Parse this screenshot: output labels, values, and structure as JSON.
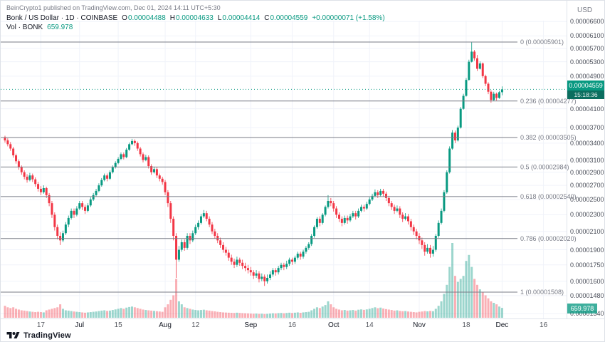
{
  "header": {
    "attribution": "BeinCrypto1 published on TradingView.com, Dec 01, 2024 14:11 UTC+5:30"
  },
  "legend": {
    "symbol": "Bonk / US Dollar · 1D · COINBASE",
    "ohlc": [
      {
        "key": "O",
        "value": "0.00004488"
      },
      {
        "key": "H",
        "value": "0.00004633"
      },
      {
        "key": "L",
        "value": "0.00004414"
      },
      {
        "key": "C",
        "value": "0.00004559"
      }
    ],
    "change": "+0.00000071 (+1.58%)",
    "volume_label": "Vol · BONK",
    "volume_value": "659.978"
  },
  "price_scale": {
    "currency": "USD",
    "last_price_badge": {
      "price": "0.00004559",
      "countdown": "15:18:36"
    },
    "volume_badge": "659.978"
  },
  "footer": {
    "logo_text": "TradingView"
  },
  "colors": {
    "up": "#089981",
    "down": "#f23645",
    "fib": "#787b86",
    "grid": "#f0f3fa",
    "badge_green": "#089981"
  },
  "chart_data": {
    "type": "candlestick",
    "title": "Bonk / US Dollar · 1D · COINBASE",
    "symbol": "BONK/USD",
    "exchange": "COINBASE",
    "interval": "1D",
    "scale": "log",
    "price_unit": "USD",
    "candle_value_unit": 1e-08,
    "start_date": "2024-06-04",
    "end_date": "2024-12-01",
    "last": {
      "open": "0.00004488",
      "high": "0.00004633",
      "low": "0.00004414",
      "close": "0.00004559",
      "change": "+0.00000071 (+1.58%)",
      "volume": "659.978"
    },
    "fib_levels": [
      {
        "label": "0 (0.00005901)",
        "price": 5.901e-05
      },
      {
        "label": "0.236 (0.00004277)",
        "price": 4.277e-05
      },
      {
        "label": "0.382 (0.00003505)",
        "price": 3.505e-05
      },
      {
        "label": "0.5 (0.00002984)",
        "price": 2.984e-05
      },
      {
        "label": "0.618 (0.00002540)",
        "price": 2.54e-05
      },
      {
        "label": "0.786 (0.00002020)",
        "price": 2.02e-05
      },
      {
        "label": "1 (0.00001508)",
        "price": 1.508e-05
      }
    ],
    "price_axis_labels": [
      "0.00006600",
      "0.00006100",
      "0.00005700",
      "0.00005300",
      "0.00004900",
      "0.00004100",
      "0.00003700",
      "0.00003400",
      "0.00003100",
      "0.00002900",
      "0.00002700",
      "0.00002500",
      "0.00002300",
      "0.00002100",
      "0.00001900",
      "0.00001750",
      "0.00001600",
      "0.00001480",
      "0.00001340"
    ],
    "time_ticks": [
      {
        "label": "17",
        "i": 13
      },
      {
        "label": "Jul",
        "i": 27,
        "major": true
      },
      {
        "label": "15",
        "i": 41
      },
      {
        "label": "Aug",
        "i": 58,
        "major": true
      },
      {
        "label": "12",
        "i": 69
      },
      {
        "label": "Sep",
        "i": 89,
        "major": true
      },
      {
        "label": "16",
        "i": 104
      },
      {
        "label": "Oct",
        "i": 119,
        "major": true
      },
      {
        "label": "14",
        "i": 132
      },
      {
        "label": "Nov",
        "i": 150,
        "major": true
      },
      {
        "label": "18",
        "i": 167
      },
      {
        "label": "Dec",
        "i": 180,
        "major": true
      },
      {
        "label": "16",
        "i": 195
      }
    ],
    "volume_axis_max": 5000,
    "candles_format": [
      "open",
      "high",
      "low",
      "close",
      "volume"
    ],
    "candles": [
      [
        3500,
        3540,
        3410,
        3450,
        800
      ],
      [
        3450,
        3490,
        3340,
        3380,
        700
      ],
      [
        3380,
        3420,
        3260,
        3300,
        650
      ],
      [
        3300,
        3330,
        3140,
        3180,
        700
      ],
      [
        3180,
        3210,
        3040,
        3080,
        600
      ],
      [
        3080,
        3110,
        2940,
        2980,
        550
      ],
      [
        2980,
        3010,
        2860,
        2900,
        500
      ],
      [
        2900,
        2930,
        2790,
        2830,
        480
      ],
      [
        2830,
        2870,
        2740,
        2780,
        450
      ],
      [
        2780,
        2890,
        2760,
        2850,
        420
      ],
      [
        2850,
        2880,
        2750,
        2790,
        400
      ],
      [
        2790,
        2820,
        2680,
        2720,
        380
      ],
      [
        2720,
        2750,
        2610,
        2650,
        400
      ],
      [
        2650,
        2690,
        2560,
        2600,
        380
      ],
      [
        2600,
        2700,
        2580,
        2660,
        360
      ],
      [
        2660,
        2680,
        2520,
        2560,
        500
      ],
      [
        2560,
        2590,
        2410,
        2450,
        550
      ],
      [
        2450,
        2480,
        2260,
        2300,
        600
      ],
      [
        2300,
        2330,
        2110,
        2150,
        650
      ],
      [
        2150,
        2180,
        2010,
        2050,
        700
      ],
      [
        2050,
        2090,
        1950,
        2000,
        900
      ],
      [
        2000,
        2110,
        1980,
        2080,
        600
      ],
      [
        2080,
        2210,
        2060,
        2180,
        500
      ],
      [
        2180,
        2290,
        2150,
        2260,
        480
      ],
      [
        2260,
        2380,
        2240,
        2350,
        450
      ],
      [
        2350,
        2380,
        2260,
        2300,
        420
      ],
      [
        2300,
        2410,
        2280,
        2380,
        400
      ],
      [
        2380,
        2480,
        2360,
        2450,
        380
      ],
      [
        2450,
        2480,
        2360,
        2400,
        360
      ],
      [
        2400,
        2430,
        2310,
        2350,
        340
      ],
      [
        2350,
        2450,
        2330,
        2420,
        360
      ],
      [
        2420,
        2530,
        2400,
        2500,
        380
      ],
      [
        2500,
        2590,
        2480,
        2560,
        400
      ],
      [
        2560,
        2650,
        2540,
        2620,
        420
      ],
      [
        2620,
        2730,
        2600,
        2700,
        450
      ],
      [
        2700,
        2810,
        2680,
        2780,
        480
      ],
      [
        2780,
        2880,
        2760,
        2850,
        500
      ],
      [
        2850,
        2880,
        2760,
        2800,
        460
      ],
      [
        2800,
        2930,
        2780,
        2900,
        480
      ],
      [
        2900,
        3010,
        2880,
        2980,
        520
      ],
      [
        2980,
        3080,
        2960,
        3050,
        560
      ],
      [
        3050,
        3150,
        3030,
        3120,
        600
      ],
      [
        3120,
        3230,
        3100,
        3200,
        650
      ],
      [
        3200,
        3230,
        3110,
        3150,
        600
      ],
      [
        3150,
        3310,
        3130,
        3280,
        680
      ],
      [
        3280,
        3410,
        3260,
        3380,
        720
      ],
      [
        3380,
        3480,
        3360,
        3440,
        750
      ],
      [
        3440,
        3470,
        3350,
        3400,
        700
      ],
      [
        3400,
        3430,
        3260,
        3300,
        650
      ],
      [
        3300,
        3330,
        3160,
        3200,
        600
      ],
      [
        3200,
        3230,
        3060,
        3100,
        550
      ],
      [
        3100,
        3190,
        3080,
        3150,
        520
      ],
      [
        3150,
        3180,
        2960,
        3000,
        500
      ],
      [
        3000,
        3030,
        2860,
        2900,
        480
      ],
      [
        2900,
        2990,
        2880,
        2950,
        460
      ],
      [
        2950,
        2980,
        2810,
        2850,
        440
      ],
      [
        2850,
        2880,
        2760,
        2800,
        420
      ],
      [
        2800,
        2830,
        2710,
        2750,
        400
      ],
      [
        2750,
        2780,
        2560,
        2600,
        700
      ],
      [
        2600,
        2630,
        2400,
        2450,
        900
      ],
      [
        2450,
        2480,
        2200,
        2250,
        1200
      ],
      [
        2250,
        2280,
        2000,
        2050,
        1500
      ],
      [
        2050,
        2080,
        1630,
        1800,
        2600
      ],
      [
        1800,
        1940,
        1780,
        1900,
        1100
      ],
      [
        1900,
        2010,
        1880,
        1980,
        900
      ],
      [
        1980,
        2010,
        1890,
        1920,
        700
      ],
      [
        1920,
        2080,
        1900,
        2050,
        650
      ],
      [
        2050,
        2080,
        1960,
        2000,
        600
      ],
      [
        2000,
        2110,
        1980,
        2080,
        550
      ],
      [
        2080,
        2180,
        2060,
        2150,
        520
      ],
      [
        2150,
        2230,
        2120,
        2200,
        500
      ],
      [
        2200,
        2310,
        2180,
        2280,
        520
      ],
      [
        2280,
        2360,
        2260,
        2320,
        540
      ],
      [
        2320,
        2350,
        2220,
        2250,
        500
      ],
      [
        2250,
        2280,
        2150,
        2180,
        480
      ],
      [
        2180,
        2210,
        2070,
        2100,
        450
      ],
      [
        2100,
        2130,
        2020,
        2050,
        430
      ],
      [
        2050,
        2080,
        1970,
        2000,
        400
      ],
      [
        2000,
        2030,
        1920,
        1950,
        380
      ],
      [
        1950,
        1980,
        1870,
        1900,
        360
      ],
      [
        1900,
        1930,
        1840,
        1870,
        350
      ],
      [
        1870,
        1900,
        1790,
        1820,
        340
      ],
      [
        1820,
        1850,
        1750,
        1780,
        330
      ],
      [
        1780,
        1810,
        1720,
        1750,
        320
      ],
      [
        1750,
        1830,
        1730,
        1800,
        340
      ],
      [
        1800,
        1820,
        1740,
        1770,
        320
      ],
      [
        1770,
        1800,
        1710,
        1740,
        310
      ],
      [
        1740,
        1770,
        1690,
        1720,
        300
      ],
      [
        1720,
        1750,
        1670,
        1700,
        290
      ],
      [
        1700,
        1730,
        1650,
        1680,
        280
      ],
      [
        1680,
        1700,
        1620,
        1650,
        270
      ],
      [
        1650,
        1700,
        1630,
        1670,
        280
      ],
      [
        1670,
        1690,
        1590,
        1620,
        260
      ],
      [
        1620,
        1670,
        1600,
        1640,
        270
      ],
      [
        1640,
        1660,
        1560,
        1600,
        250
      ],
      [
        1600,
        1660,
        1580,
        1630,
        260
      ],
      [
        1630,
        1690,
        1610,
        1660,
        280
      ],
      [
        1660,
        1720,
        1640,
        1700,
        300
      ],
      [
        1700,
        1720,
        1650,
        1680,
        290
      ],
      [
        1680,
        1740,
        1660,
        1720,
        310
      ],
      [
        1720,
        1770,
        1700,
        1750,
        320
      ],
      [
        1750,
        1770,
        1700,
        1730,
        300
      ],
      [
        1730,
        1790,
        1710,
        1760,
        320
      ],
      [
        1760,
        1820,
        1740,
        1800,
        340
      ],
      [
        1800,
        1820,
        1750,
        1780,
        320
      ],
      [
        1780,
        1840,
        1760,
        1820,
        340
      ],
      [
        1820,
        1880,
        1800,
        1860,
        360
      ],
      [
        1860,
        1880,
        1800,
        1830,
        330
      ],
      [
        1830,
        1900,
        1810,
        1880,
        360
      ],
      [
        1880,
        1940,
        1860,
        1920,
        380
      ],
      [
        1920,
        1980,
        1900,
        1960,
        400
      ],
      [
        1960,
        2070,
        1940,
        2050,
        500
      ],
      [
        2050,
        2170,
        2030,
        2150,
        600
      ],
      [
        2150,
        2270,
        2130,
        2250,
        700
      ],
      [
        2250,
        2280,
        2160,
        2200,
        650
      ],
      [
        2200,
        2320,
        2180,
        2300,
        750
      ],
      [
        2300,
        2420,
        2280,
        2400,
        850
      ],
      [
        2400,
        2560,
        2380,
        2480,
        1100
      ],
      [
        2480,
        2520,
        2410,
        2450,
        900
      ],
      [
        2450,
        2480,
        2340,
        2380,
        700
      ],
      [
        2380,
        2410,
        2260,
        2300,
        600
      ],
      [
        2300,
        2330,
        2210,
        2250,
        550
      ],
      [
        2250,
        2280,
        2160,
        2200,
        500
      ],
      [
        2200,
        2290,
        2180,
        2260,
        520
      ],
      [
        2260,
        2290,
        2190,
        2230,
        480
      ],
      [
        2230,
        2310,
        2210,
        2280,
        500
      ],
      [
        2280,
        2350,
        2260,
        2320,
        520
      ],
      [
        2320,
        2350,
        2240,
        2280,
        480
      ],
      [
        2280,
        2380,
        2260,
        2350,
        540
      ],
      [
        2350,
        2430,
        2330,
        2400,
        560
      ],
      [
        2400,
        2430,
        2340,
        2380,
        530
      ],
      [
        2380,
        2470,
        2360,
        2440,
        560
      ],
      [
        2440,
        2530,
        2420,
        2500,
        600
      ],
      [
        2500,
        2580,
        2480,
        2550,
        650
      ],
      [
        2550,
        2640,
        2530,
        2600,
        700
      ],
      [
        2600,
        2630,
        2520,
        2560,
        640
      ],
      [
        2560,
        2650,
        2540,
        2620,
        680
      ],
      [
        2620,
        2650,
        2540,
        2580,
        620
      ],
      [
        2580,
        2610,
        2480,
        2520,
        580
      ],
      [
        2520,
        2550,
        2410,
        2450,
        550
      ],
      [
        2450,
        2480,
        2360,
        2400,
        520
      ],
      [
        2400,
        2430,
        2310,
        2350,
        480
      ],
      [
        2350,
        2420,
        2330,
        2380,
        500
      ],
      [
        2380,
        2410,
        2260,
        2300,
        460
      ],
      [
        2300,
        2330,
        2210,
        2250,
        440
      ],
      [
        2250,
        2320,
        2230,
        2280,
        450
      ],
      [
        2280,
        2310,
        2180,
        2220,
        420
      ],
      [
        2220,
        2250,
        2110,
        2150,
        400
      ],
      [
        2150,
        2180,
        2060,
        2100,
        380
      ],
      [
        2100,
        2130,
        2010,
        2050,
        360
      ],
      [
        2050,
        2080,
        1960,
        2000,
        400
      ],
      [
        2000,
        2030,
        1910,
        1950,
        420
      ],
      [
        1950,
        1980,
        1840,
        1880,
        450
      ],
      [
        1880,
        1960,
        1860,
        1920,
        430
      ],
      [
        1920,
        1950,
        1820,
        1860,
        460
      ],
      [
        1860,
        1940,
        1830,
        1900,
        440
      ],
      [
        1900,
        2070,
        1880,
        2050,
        600
      ],
      [
        2050,
        2230,
        2030,
        2200,
        800
      ],
      [
        2200,
        2380,
        2180,
        2350,
        1100
      ],
      [
        2350,
        2630,
        2330,
        2600,
        1600
      ],
      [
        2600,
        2930,
        2580,
        2900,
        2200
      ],
      [
        2900,
        3340,
        2880,
        3300,
        3400
      ],
      [
        3300,
        3650,
        3280,
        3600,
        5000
      ],
      [
        3600,
        3640,
        3400,
        3450,
        2800
      ],
      [
        3450,
        3740,
        3430,
        3700,
        2400
      ],
      [
        3700,
        4140,
        3680,
        4100,
        2600
      ],
      [
        4100,
        4450,
        4080,
        4400,
        2800
      ],
      [
        4400,
        4850,
        4380,
        4800,
        3800
      ],
      [
        4800,
        5360,
        4780,
        5300,
        4200
      ],
      [
        5300,
        5901,
        5280,
        5600,
        3400
      ],
      [
        5600,
        5650,
        5330,
        5400,
        2600
      ],
      [
        5400,
        5500,
        5040,
        5100,
        2200
      ],
      [
        5100,
        5310,
        5080,
        5250,
        1900
      ],
      [
        5250,
        5280,
        4850,
        4900,
        1700
      ],
      [
        4900,
        4940,
        4640,
        4700,
        1500
      ],
      [
        4700,
        4740,
        4440,
        4500,
        1300
      ],
      [
        4500,
        4540,
        4240,
        4300,
        1100
      ],
      [
        4300,
        4500,
        4280,
        4450,
        1000
      ],
      [
        4450,
        4480,
        4290,
        4350,
        900
      ],
      [
        4350,
        4520,
        4330,
        4488,
        750
      ],
      [
        4488,
        4633,
        4414,
        4559,
        660
      ]
    ]
  }
}
